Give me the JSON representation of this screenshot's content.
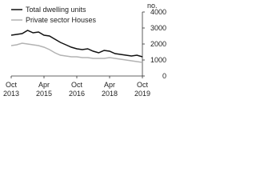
{
  "chart_data": {
    "type": "line",
    "y_label": "no.",
    "categories": [
      "Oct 2013",
      null,
      null,
      null,
      null,
      null,
      "Apr 2015",
      null,
      null,
      null,
      null,
      null,
      "Oct 2016",
      null,
      null,
      null,
      null,
      null,
      "Apr 2018",
      null,
      null,
      null,
      null,
      null,
      "Oct 2019"
    ],
    "series": [
      {
        "name": "Total dwelling units",
        "color": "#111111",
        "values": [
          2550,
          2600,
          2650,
          2850,
          2700,
          2750,
          2550,
          2500,
          2300,
          2100,
          1950,
          1800,
          1700,
          1650,
          1700,
          1550,
          1450,
          1600,
          1550,
          1400,
          1350,
          1300,
          1250,
          1300,
          1200
        ]
      },
      {
        "name": "Private sector Houses",
        "color": "#b3b3b3",
        "values": [
          1900,
          1950,
          2050,
          2000,
          1950,
          1900,
          1800,
          1650,
          1450,
          1300,
          1250,
          1200,
          1200,
          1150,
          1150,
          1100,
          1100,
          1100,
          1150,
          1100,
          1050,
          1000,
          950,
          900,
          850
        ]
      }
    ],
    "ylim": [
      0,
      4000
    ],
    "yticks": [
      0,
      1000,
      2000,
      3000,
      4000
    ]
  }
}
